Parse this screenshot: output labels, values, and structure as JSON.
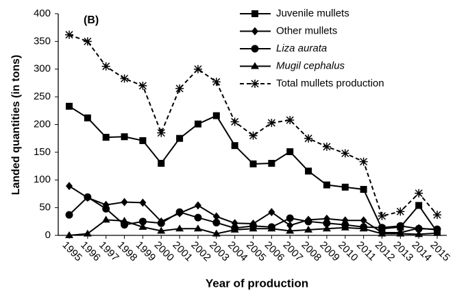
{
  "chart_data": {
    "type": "line",
    "panel_label": "(B)",
    "x_label": "Year of production",
    "y_label": "Landed quantities (in tons)",
    "categories": [
      "1995",
      "1996",
      "1997",
      "1998",
      "1999",
      "2000",
      "2001",
      "2002",
      "2003",
      "2004",
      "2005",
      "2006",
      "2007",
      "2008",
      "2009",
      "2010",
      "2011",
      "2012",
      "2013",
      "2014",
      "2015"
    ],
    "ylim": [
      0,
      400
    ],
    "yticks": [
      0,
      50,
      100,
      150,
      200,
      250,
      300,
      350,
      400
    ],
    "legend": "top-right",
    "series": [
      {
        "name": "Juvenile mullets",
        "color": "#000000",
        "marker": "square",
        "dash": false,
        "italic": false,
        "values": [
          233,
          212,
          177,
          178,
          171,
          130,
          175,
          201,
          216,
          162,
          129,
          130,
          151,
          116,
          91,
          87,
          83,
          12,
          15,
          54,
          6
        ]
      },
      {
        "name": "Other mullets",
        "color": "#000000",
        "marker": "diamond",
        "dash": false,
        "italic": false,
        "values": [
          89,
          68,
          55,
          60,
          59,
          25,
          40,
          54,
          34,
          22,
          21,
          42,
          18,
          28,
          30,
          27,
          27,
          5,
          5,
          13,
          10
        ]
      },
      {
        "name": "Liza aurata",
        "color": "#000000",
        "marker": "circle",
        "dash": false,
        "italic": true,
        "values": [
          37,
          69,
          48,
          19,
          25,
          22,
          42,
          32,
          23,
          13,
          17,
          15,
          31,
          25,
          22,
          19,
          15,
          14,
          17,
          12,
          11
        ]
      },
      {
        "name": "Mugil cephalus",
        "color": "#000000",
        "marker": "triangle",
        "dash": false,
        "italic": true,
        "values": [
          0,
          3,
          28,
          26,
          15,
          8,
          12,
          12,
          3,
          10,
          12,
          12,
          8,
          10,
          12,
          14,
          12,
          3,
          3,
          2,
          4
        ]
      },
      {
        "name": "Total mullets production",
        "color": "#000000",
        "marker": "asterisk",
        "dash": true,
        "italic": false,
        "values": [
          362,
          350,
          305,
          283,
          270,
          185,
          265,
          300,
          277,
          205,
          180,
          203,
          208,
          175,
          160,
          148,
          133,
          35,
          43,
          76,
          37
        ]
      }
    ]
  }
}
